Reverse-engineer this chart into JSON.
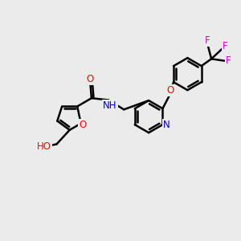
{
  "bg_color": "#ebebeb",
  "bond_color": "#000000",
  "bond_width": 1.8,
  "atom_colors": {
    "O": "#ff0000",
    "N": "#0000cc",
    "F": "#cc00cc",
    "C": "#000000"
  },
  "figsize": [
    3.0,
    3.0
  ],
  "dpi": 100
}
